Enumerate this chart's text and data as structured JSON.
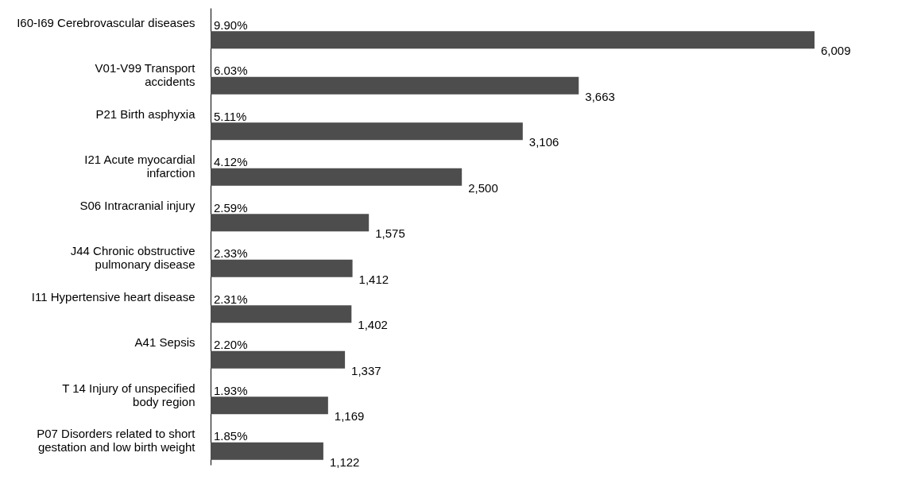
{
  "chart_data": {
    "type": "bar",
    "orientation": "horizontal",
    "color": "#4d4d4d",
    "categories": [
      "I60-I69 Cerebrovascular diseases",
      "V01-V99 Transport\naccidents",
      "P21 Birth asphyxia",
      "I21 Acute myocardial\ninfarction",
      "S06 Intracranial injury",
      "J44 Chronic obstructive\npulmonary disease",
      "I11 Hypertensive heart disease",
      "A41 Sepsis",
      "T 14 Injury of unspecified\nbody region",
      "P07 Disorders related to short\ngestation and low birth weight"
    ],
    "values": [
      6009,
      3663,
      3106,
      2500,
      1575,
      1412,
      1402,
      1337,
      1169,
      1122
    ],
    "value_labels": [
      "6,009",
      "3,663",
      "3,106",
      "2,500",
      "1,575",
      "1,412",
      "1,402",
      "1,337",
      "1,169",
      "1,122"
    ],
    "annotations": [
      "9.90%",
      "6.03%",
      "5.11%",
      "4.12%",
      "2.59%",
      "2.33%",
      "2.31%",
      "2.20%",
      "1.93%",
      "1.85%"
    ]
  }
}
